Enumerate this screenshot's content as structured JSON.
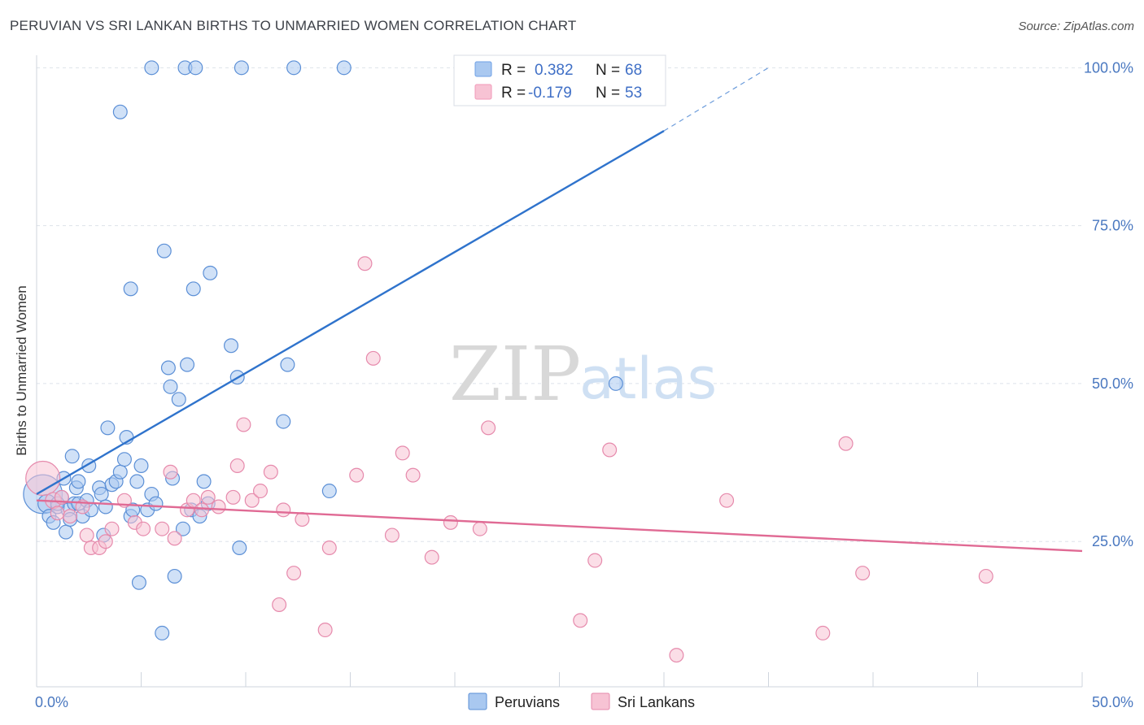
{
  "header": {
    "title": "PERUVIAN VS SRI LANKAN BIRTHS TO UNMARRIED WOMEN CORRELATION CHART",
    "source": "Source: ZipAtlas.com"
  },
  "watermark": {
    "zip": "ZIP",
    "atlas": "atlas"
  },
  "legend_top": [
    {
      "r_label": "R =",
      "r_value": "0.382",
      "n_label": "N =",
      "n_value": "68",
      "color": "#6ea0e6"
    },
    {
      "r_label": "R =",
      "r_value": "-0.179",
      "n_label": "N =",
      "n_value": "53",
      "color": "#f29ab8"
    }
  ],
  "colors": {
    "peruvians_fill": "#a9c8f0",
    "peruvians_stroke": "#5b8fd6",
    "peruvians_line": "#2f73cc",
    "srilankans_fill": "#f7c3d4",
    "srilankans_stroke": "#e68aac",
    "srilankans_line": "#e06a94",
    "grid": "#dde2ea",
    "axis_text": "#4a78c0"
  },
  "chart_data": {
    "type": "scatter",
    "title": "PERUVIAN VS SRI LANKAN BIRTHS TO UNMARRIED WOMEN CORRELATION CHART",
    "xlabel": "",
    "ylabel": "Births to Unmarried Women",
    "xlim": [
      0,
      50
    ],
    "ylim": [
      2,
      103
    ],
    "x_tick_labels": [
      "0.0%",
      "50.0%"
    ],
    "y_ticks": [
      25,
      50,
      75,
      100
    ],
    "y_tick_labels": [
      "25.0%",
      "50.0%",
      "75.0%",
      "100.0%"
    ],
    "grid": true,
    "legend_position": "top-center",
    "series": [
      {
        "name": "Peruvians",
        "r": 0.382,
        "n": 68,
        "trend": {
          "x0": 0,
          "y0": 32.5,
          "x1": 30,
          "y1": 90,
          "dashed_to_x": 35,
          "dashed_to_y": 100
        },
        "points": [
          [
            0.3,
            32.5,
            34
          ],
          [
            0.5,
            31,
            16
          ],
          [
            0.6,
            29,
            12
          ],
          [
            0.8,
            28,
            12
          ],
          [
            1,
            30.5,
            12
          ],
          [
            1.2,
            32,
            12
          ],
          [
            1.3,
            35,
            12
          ],
          [
            1.4,
            26.5,
            12
          ],
          [
            1.5,
            30,
            12
          ],
          [
            1.6,
            28.5,
            12
          ],
          [
            1.7,
            38.5,
            12
          ],
          [
            1.8,
            31,
            12
          ],
          [
            1.9,
            33.5,
            12
          ],
          [
            2.0,
            31,
            12
          ],
          [
            2.2,
            29,
            12
          ],
          [
            2.4,
            31.5,
            12
          ],
          [
            2.5,
            37,
            12
          ],
          [
            2.6,
            30,
            12
          ],
          [
            3.0,
            33.5,
            12
          ],
          [
            3.1,
            32.5,
            12
          ],
          [
            3.2,
            26,
            12
          ],
          [
            3.4,
            43,
            12
          ],
          [
            3.6,
            34,
            12
          ],
          [
            3.8,
            34.5,
            12
          ],
          [
            4.0,
            36,
            12
          ],
          [
            4.2,
            38,
            12
          ],
          [
            4.3,
            41.5,
            12
          ],
          [
            4.5,
            29,
            12
          ],
          [
            4.6,
            30,
            12
          ],
          [
            4.8,
            34.5,
            12
          ],
          [
            4.9,
            18.5,
            12
          ],
          [
            5.0,
            37,
            12
          ],
          [
            5.3,
            30,
            12
          ],
          [
            5.5,
            32.5,
            12
          ],
          [
            5.7,
            31,
            12
          ],
          [
            6.0,
            10.5,
            12
          ],
          [
            6.1,
            71,
            12
          ],
          [
            6.3,
            52.5,
            12
          ],
          [
            6.4,
            49.5,
            12
          ],
          [
            6.5,
            35,
            12
          ],
          [
            6.6,
            19.5,
            12
          ],
          [
            6.8,
            47.5,
            12
          ],
          [
            7.0,
            27,
            12
          ],
          [
            7.2,
            53,
            12
          ],
          [
            7.4,
            30,
            12
          ],
          [
            7.5,
            65,
            12
          ],
          [
            7.8,
            29,
            12
          ],
          [
            8.0,
            34.5,
            12
          ],
          [
            8.2,
            31,
            12
          ],
          [
            8.3,
            67.5,
            12
          ],
          [
            9.3,
            56,
            12
          ],
          [
            9.6,
            51,
            12
          ],
          [
            9.7,
            24,
            12
          ],
          [
            11.8,
            44,
            12
          ],
          [
            12.0,
            53,
            12
          ],
          [
            14.0,
            33,
            12
          ],
          [
            27.7,
            50,
            12
          ],
          [
            4.0,
            93,
            12
          ],
          [
            4.5,
            65,
            12
          ],
          [
            5.5,
            100,
            12
          ],
          [
            7.1,
            100,
            12
          ],
          [
            7.6,
            100,
            12
          ],
          [
            9.8,
            100,
            12
          ],
          [
            12.3,
            100,
            12
          ],
          [
            14.7,
            100,
            12
          ],
          [
            2.0,
            34.5,
            12
          ],
          [
            1.0,
            31,
            12
          ],
          [
            3.3,
            30.5,
            12
          ]
        ]
      },
      {
        "name": "Sri Lankans",
        "r": -0.179,
        "n": 53,
        "trend": {
          "x0": 0,
          "y0": 31.5,
          "x1": 50,
          "y1": 23.5
        },
        "points": [
          [
            0.3,
            35,
            30
          ],
          [
            0.8,
            31.5,
            14
          ],
          [
            1.0,
            29.5,
            12
          ],
          [
            1.2,
            32,
            12
          ],
          [
            1.6,
            29,
            12
          ],
          [
            2.2,
            30.5,
            12
          ],
          [
            2.4,
            26,
            12
          ],
          [
            2.6,
            24,
            12
          ],
          [
            3.0,
            24,
            12
          ],
          [
            3.3,
            25,
            12
          ],
          [
            3.6,
            27,
            12
          ],
          [
            4.2,
            31.5,
            12
          ],
          [
            4.7,
            28,
            12
          ],
          [
            5.1,
            27,
            12
          ],
          [
            6.0,
            27,
            12
          ],
          [
            6.4,
            36,
            12
          ],
          [
            6.6,
            25.5,
            12
          ],
          [
            7.2,
            30,
            12
          ],
          [
            7.5,
            31.5,
            12
          ],
          [
            7.9,
            30,
            12
          ],
          [
            8.2,
            32,
            12
          ],
          [
            8.7,
            30.5,
            12
          ],
          [
            9.4,
            32,
            12
          ],
          [
            9.6,
            37,
            12
          ],
          [
            9.9,
            43.5,
            12
          ],
          [
            10.3,
            31.5,
            12
          ],
          [
            10.7,
            33,
            12
          ],
          [
            11.2,
            36,
            12
          ],
          [
            11.6,
            15,
            12
          ],
          [
            11.8,
            30,
            12
          ],
          [
            12.3,
            20,
            12
          ],
          [
            12.7,
            28.5,
            12
          ],
          [
            13.8,
            11,
            12
          ],
          [
            14.0,
            24,
            12
          ],
          [
            15.3,
            35.5,
            12
          ],
          [
            15.7,
            69,
            12
          ],
          [
            16.1,
            54,
            12
          ],
          [
            17.0,
            26,
            12
          ],
          [
            17.5,
            39,
            12
          ],
          [
            18.0,
            35.5,
            12
          ],
          [
            18.9,
            22.5,
            12
          ],
          [
            19.8,
            28,
            12
          ],
          [
            21.2,
            27,
            12
          ],
          [
            21.6,
            43,
            12
          ],
          [
            26.0,
            12.5,
            12
          ],
          [
            26.7,
            22,
            12
          ],
          [
            27.4,
            39.5,
            12
          ],
          [
            30.6,
            7,
            12
          ],
          [
            33.0,
            31.5,
            12
          ],
          [
            37.6,
            10.5,
            12
          ],
          [
            38.7,
            40.5,
            12
          ],
          [
            39.5,
            20,
            12
          ],
          [
            45.4,
            19.5,
            12
          ]
        ]
      }
    ]
  },
  "legend_bottom": [
    {
      "label": "Peruvians"
    },
    {
      "label": "Sri Lankans"
    }
  ]
}
